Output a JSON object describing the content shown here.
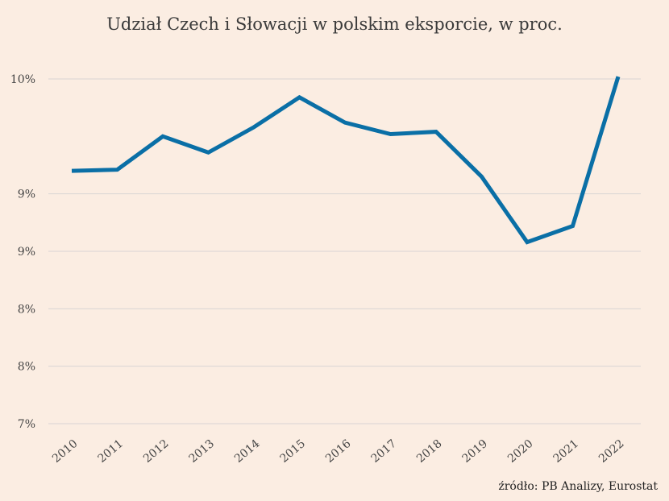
{
  "chart_data": {
    "type": "line",
    "title": "Udział Czech i Słowacji w polskim eksporcie, w proc.",
    "xlabel": "",
    "ylabel": "",
    "categories": [
      "2010",
      "2011",
      "2012",
      "2013",
      "2014",
      "2015",
      "2016",
      "2017",
      "2018",
      "2019",
      "2020",
      "2021",
      "2022"
    ],
    "series": [
      {
        "values": [
          9.2,
          9.21,
          9.5,
          9.36,
          9.58,
          9.84,
          9.62,
          9.52,
          9.54,
          9.15,
          8.58,
          8.72,
          10.02
        ],
        "color": "#0A6FA6"
      }
    ],
    "ylim": [
      7.0,
      10.2
    ],
    "yticks": [
      {
        "value": 7.0,
        "label": "7%"
      },
      {
        "value": 7.5,
        "label": "8%"
      },
      {
        "value": 8.0,
        "label": "8%"
      },
      {
        "value": 8.5,
        "label": "9%"
      },
      {
        "value": 9.0,
        "label": "9%"
      },
      {
        "value": 10.0,
        "label": "10%"
      }
    ],
    "grid": true,
    "legend": "none",
    "background": "#FBEDE2",
    "gridline_color": "#d9d4d4"
  },
  "source": "źródło: PB Analizy, Eurostat"
}
